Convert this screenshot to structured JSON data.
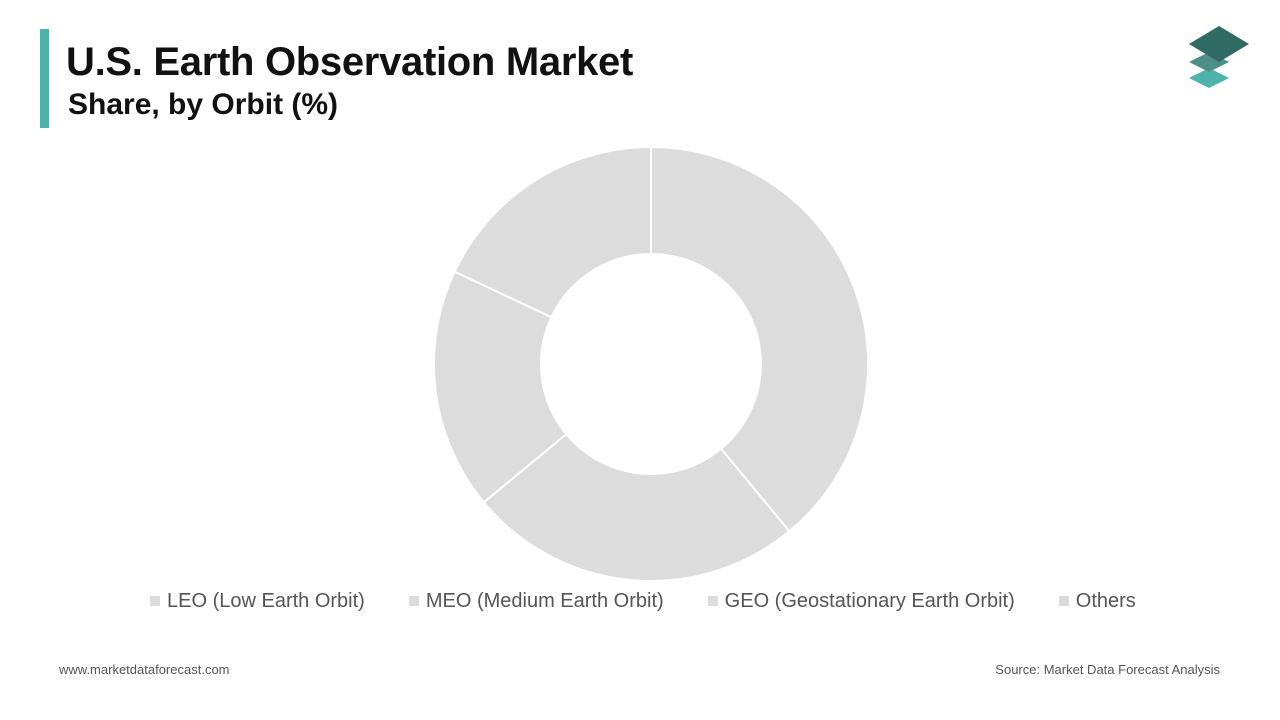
{
  "header": {
    "title": "U.S. Earth Observation Market",
    "subtitle": "Share, by Orbit (%)"
  },
  "colors": {
    "accent": "#4fb3ad",
    "slice_fill": "#dcdcdc",
    "slice_border": "#ffffff",
    "logo_dark": "#2f6b63",
    "logo_mid": "#4d8f86",
    "logo_light": "#4fb3ad"
  },
  "chart_data": {
    "type": "pie",
    "donut": true,
    "categories": [
      "LEO (Low Earth Orbit)",
      "MEO (Medium Earth Orbit)",
      "GEO (Geostationary Earth Orbit)",
      "Others"
    ],
    "values": [
      39,
      25,
      18,
      18
    ],
    "legend_position": "bottom"
  },
  "footer": {
    "website": "www.marketdataforecast.com",
    "source": "Source: Market Data Forecast Analysis"
  }
}
